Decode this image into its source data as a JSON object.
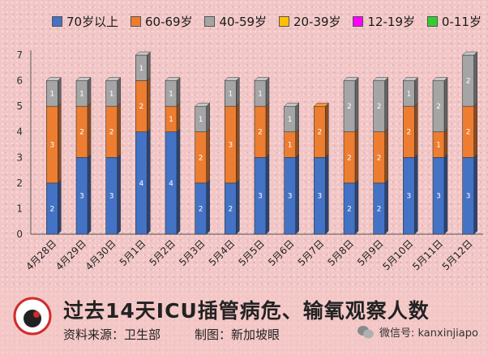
{
  "legend": [
    {
      "label": "70岁以上",
      "color": "#4472c4"
    },
    {
      "label": "60-69岁",
      "color": "#ed7d31"
    },
    {
      "label": "40-59岁",
      "color": "#a5a5a5"
    },
    {
      "label": "20-39岁",
      "color": "#ffc000"
    },
    {
      "label": "12-19岁",
      "color": "#ff00ff"
    },
    {
      "label": "0-11岁",
      "color": "#33cc33"
    }
  ],
  "chart_data": {
    "type": "bar",
    "stacked": true,
    "categories": [
      "4月28日",
      "4月29日",
      "4月30日",
      "5月1日",
      "5月2日",
      "5月3日",
      "5月4日",
      "5月5日",
      "5月6日",
      "5月7日",
      "5月8日",
      "5月9日",
      "5月10日",
      "5月11日",
      "5月12日"
    ],
    "series": [
      {
        "name": "70岁以上",
        "color": "#4472c4",
        "values": [
          2,
          3,
          3,
          4,
          4,
          2,
          2,
          3,
          3,
          3,
          2,
          2,
          3,
          3,
          3
        ]
      },
      {
        "name": "60-69岁",
        "color": "#ed7d31",
        "values": [
          3,
          2,
          2,
          2,
          1,
          2,
          3,
          2,
          1,
          2,
          2,
          2,
          2,
          1,
          2
        ]
      },
      {
        "name": "40-59岁",
        "color": "#a5a5a5",
        "values": [
          1,
          1,
          1,
          1,
          1,
          1,
          1,
          1,
          1,
          0,
          2,
          2,
          1,
          2,
          2
        ]
      },
      {
        "name": "20-39岁",
        "color": "#ffc000",
        "values": [
          0,
          0,
          0,
          0,
          0,
          0,
          0,
          0,
          0,
          0,
          0,
          0,
          0,
          0,
          0
        ]
      },
      {
        "name": "12-19岁",
        "color": "#ff00ff",
        "values": [
          0,
          0,
          0,
          0,
          0,
          0,
          0,
          0,
          0,
          0,
          0,
          0,
          0,
          0,
          0
        ]
      },
      {
        "name": "0-11岁",
        "color": "#33cc33",
        "values": [
          0,
          0,
          0,
          0,
          0,
          0,
          0,
          0,
          0,
          0,
          0,
          0,
          0,
          0,
          0
        ]
      }
    ],
    "yticks": [
      0,
      1,
      2,
      3,
      4,
      5,
      6,
      7
    ],
    "ylim": [
      0,
      7
    ],
    "grid": false,
    "legend_position": "top"
  },
  "footer": {
    "logo_text": "新加坡眼",
    "title": "过去14天ICU插管病危、输氧观察人数",
    "source": "资料来源：卫生部",
    "maker": "制图：新加坡眼",
    "wechat": "微信号: kanxinjiapo"
  }
}
